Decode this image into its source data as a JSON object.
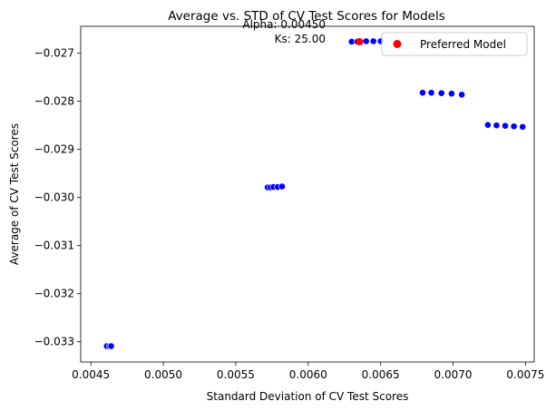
{
  "chart_data": {
    "type": "scatter",
    "title": "Average vs. STD of CV Test Scores for Models",
    "xlabel": "Standard Deviation of CV Test Scores",
    "ylabel": "Average of CV Test Scores",
    "xlim": [
      0.00443,
      0.00756
    ],
    "ylim": [
      -0.03342,
      -0.02644
    ],
    "x_ticks": [
      "0.0045",
      "0.0050",
      "0.0055",
      "0.0060",
      "0.0065",
      "0.0070",
      "0.0075"
    ],
    "x_tick_values": [
      0.0045,
      0.005,
      0.0055,
      0.006,
      0.0065,
      0.007,
      0.0075
    ],
    "y_ticks": [
      "−0.027",
      "−0.028",
      "−0.029",
      "−0.030",
      "−0.031",
      "−0.032",
      "−0.033"
    ],
    "y_tick_values": [
      -0.027,
      -0.028,
      -0.029,
      -0.03,
      -0.031,
      -0.032,
      -0.033
    ],
    "grid": false,
    "legend_position": "top-right",
    "colors": {
      "models": "#0000ff",
      "preferred": "#ff0000"
    },
    "series": [
      {
        "label": "",
        "points": [
          [
            0.00461,
            -0.03309
          ],
          [
            0.00463,
            -0.03309
          ],
          [
            0.00464,
            -0.03309
          ],
          [
            0.00572,
            -0.02979
          ],
          [
            0.00574,
            -0.02979
          ],
          [
            0.00576,
            -0.02978
          ],
          [
            0.00579,
            -0.02978
          ],
          [
            0.00582,
            -0.02977
          ],
          [
            0.0063,
            -0.02676
          ],
          [
            0.00634,
            -0.02676
          ],
          [
            0.0064,
            -0.02675
          ],
          [
            0.00645,
            -0.02675
          ],
          [
            0.0065,
            -0.02675
          ],
          [
            0.00679,
            -0.02782
          ],
          [
            0.00685,
            -0.02782
          ],
          [
            0.00692,
            -0.02783
          ],
          [
            0.00699,
            -0.02784
          ],
          [
            0.00706,
            -0.02786
          ],
          [
            0.00724,
            -0.02849
          ],
          [
            0.0073,
            -0.0285
          ],
          [
            0.00736,
            -0.02851
          ],
          [
            0.00742,
            -0.02852
          ],
          [
            0.00748,
            -0.02853
          ]
        ]
      },
      {
        "name": "Preferred Model",
        "points": [
          [
            0.006355,
            -0.02676
          ]
        ]
      }
    ],
    "annotations": [
      "Alpha: 0.00450",
      "Ks: 25.00"
    ]
  }
}
